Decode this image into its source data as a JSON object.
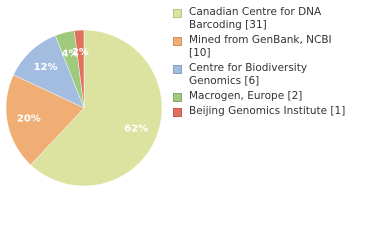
{
  "chart_data": {
    "type": "pie",
    "categories": [
      "Canadian Centre for DNA Barcoding [31]",
      "Mined from GenBank, NCBI [10]",
      "Centre for Biodiversity Genomics [6]",
      "Macrogen, Europe [2]",
      "Beijing Genomics Institute [1]"
    ],
    "values": [
      62,
      20,
      12,
      4,
      2
    ],
    "value_labels": [
      "62%",
      "20%",
      "12%",
      "4%",
      "2%"
    ],
    "colors": [
      "#dce3a0",
      "#f0ae74",
      "#a3bde1",
      "#9fc97d",
      "#e2705e"
    ]
  }
}
